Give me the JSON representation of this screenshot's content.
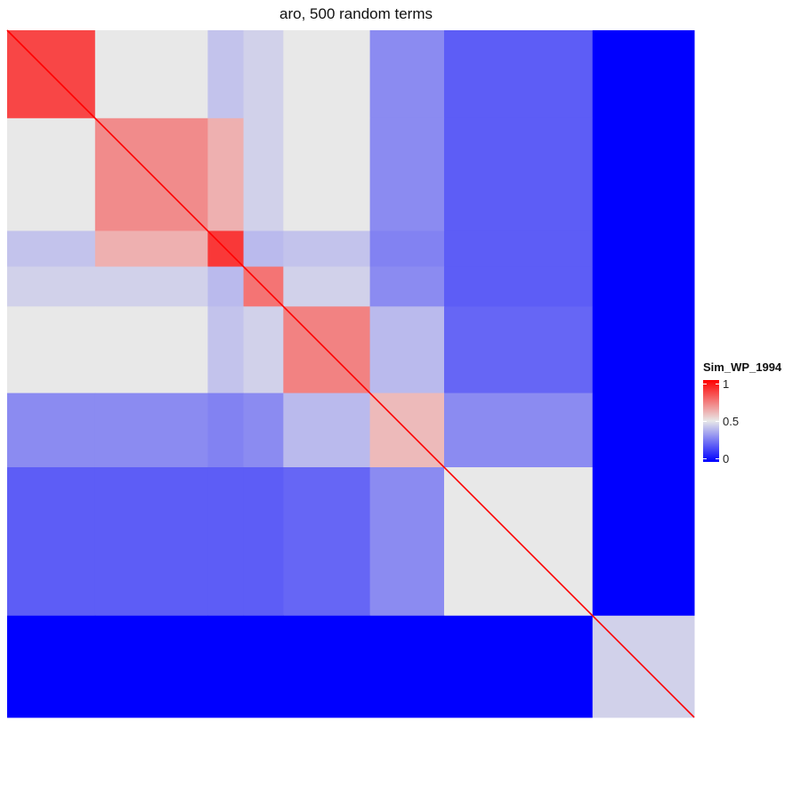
{
  "chart_data": {
    "type": "heatmap",
    "title": "aro, 500 random terms",
    "n_terms": 500,
    "legend": {
      "title": "Sim_WP_1994",
      "ticks": [
        {
          "label": "1",
          "value": 1
        },
        {
          "label": "0.5",
          "value": 0.5
        },
        {
          "label": "0",
          "value": 0
        }
      ],
      "placement": "right",
      "colors": {
        "high": "#ff0000",
        "mid": "#e8e8e8",
        "low": "#0000ff"
      }
    },
    "value_range": [
      0,
      1
    ],
    "diagonal_value": 1,
    "blocks": [
      {
        "start": 0,
        "end": 64,
        "within_similarity": 0.85
      },
      {
        "start": 64,
        "end": 146,
        "within_similarity": 0.7
      },
      {
        "start": 146,
        "end": 172,
        "within_similarity": 0.88
      },
      {
        "start": 172,
        "end": 201,
        "within_similarity": 0.75
      },
      {
        "start": 201,
        "end": 264,
        "within_similarity": 0.72
      },
      {
        "start": 264,
        "end": 318,
        "within_similarity": 0.6
      },
      {
        "start": 318,
        "end": 426,
        "within_similarity": 0.5
      },
      {
        "start": 426,
        "end": 500,
        "within_similarity": 0.45
      }
    ],
    "cross_block_similarity": [
      [
        1.0,
        0.5,
        0.42,
        0.45,
        0.5,
        0.3,
        0.2,
        0.0
      ],
      [
        0.5,
        1.0,
        0.62,
        0.45,
        0.5,
        0.3,
        0.2,
        0.0
      ],
      [
        0.42,
        0.62,
        1.0,
        0.4,
        0.42,
        0.28,
        0.2,
        0.0
      ],
      [
        0.45,
        0.45,
        0.4,
        1.0,
        0.45,
        0.3,
        0.2,
        0.0
      ],
      [
        0.5,
        0.5,
        0.42,
        0.45,
        1.0,
        0.4,
        0.22,
        0.0
      ],
      [
        0.3,
        0.3,
        0.28,
        0.3,
        0.4,
        1.0,
        0.3,
        0.0
      ],
      [
        0.2,
        0.2,
        0.2,
        0.2,
        0.22,
        0.3,
        1.0,
        0.0
      ],
      [
        0.0,
        0.0,
        0.0,
        0.0,
        0.0,
        0.0,
        0.0,
        1.0
      ]
    ]
  }
}
